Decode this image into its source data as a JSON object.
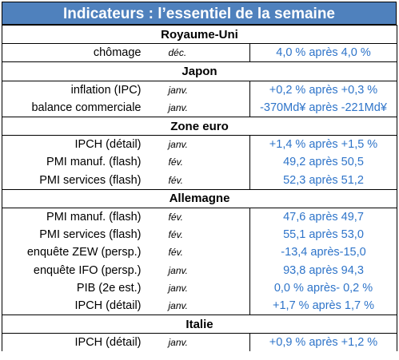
{
  "title": "Indicateurs : l’essentiel de la semaine",
  "sections": [
    {
      "name": "Royaume-Uni",
      "rows": [
        {
          "indicator": "chômage",
          "period": "déc.",
          "value": "4,0 % après 4,0 %"
        }
      ]
    },
    {
      "name": "Japon",
      "rows": [
        {
          "indicator": "inflation (IPC)",
          "period": "janv.",
          "value": "+0,2 % après +0,3 %"
        },
        {
          "indicator": "balance commerciale",
          "period": "janv.",
          "value": "-370Md¥ après -221Md¥"
        }
      ]
    },
    {
      "name": "Zone euro",
      "rows": [
        {
          "indicator": "IPCH (détail)",
          "period": "janv.",
          "value": "+1,4 % après +1,5 %"
        },
        {
          "indicator": "PMI manuf. (flash)",
          "period": "fév.",
          "value": "49,2 après 50,5"
        },
        {
          "indicator": "PMI services (flash)",
          "period": "fév.",
          "value": "52,3 après 51,2"
        }
      ]
    },
    {
      "name": "Allemagne",
      "rows": [
        {
          "indicator": "PMI manuf. (flash)",
          "period": "fév.",
          "value": "47,6 après 49,7"
        },
        {
          "indicator": "PMI services (flash)",
          "period": "fév.",
          "value": "55,1 après 53,0"
        },
        {
          "indicator": "enquête ZEW (persp.)",
          "period": "fév.",
          "value": "-13,4 après-15,0"
        },
        {
          "indicator": "enquête IFO (persp.)",
          "period": "janv.",
          "value": "93,8 après 94,3"
        },
        {
          "indicator": "PIB (2e est.)",
          "period": "janv.",
          "value": "0,0 % après- 0,2 %"
        },
        {
          "indicator": "IPCH (détail)",
          "period": "janv.",
          "value": "+1,7 % après 1,7 %"
        }
      ]
    },
    {
      "name": "Italie",
      "rows": [
        {
          "indicator": "IPCH (détail)",
          "period": "janv.",
          "value": "+0,9 % après +1,2 %"
        }
      ]
    }
  ]
}
